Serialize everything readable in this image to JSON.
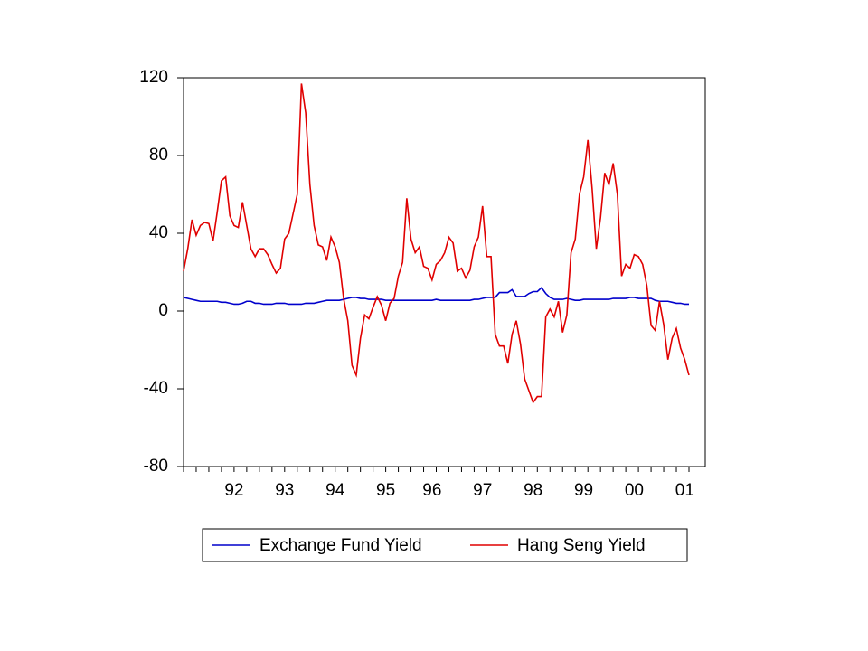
{
  "chart_data": {
    "type": "line",
    "categories": [
      null,
      null,
      null,
      null,
      null,
      null,
      null,
      null,
      null,
      null,
      null,
      null,
      "92",
      null,
      null,
      null,
      null,
      null,
      null,
      null,
      null,
      null,
      null,
      null,
      "93",
      null,
      null,
      null,
      null,
      null,
      null,
      null,
      null,
      null,
      null,
      null,
      "94",
      null,
      null,
      null,
      null,
      null,
      null,
      null,
      null,
      null,
      null,
      null,
      "95",
      null,
      null,
      null,
      null,
      null,
      null,
      null,
      null,
      null,
      null,
      "96",
      null,
      null,
      null,
      null,
      null,
      null,
      null,
      null,
      null,
      null,
      null,
      "97",
      null,
      null,
      null,
      null,
      null,
      null,
      null,
      null,
      null,
      null,
      null,
      "98",
      null,
      null,
      null,
      null,
      null,
      null,
      null,
      null,
      null,
      null,
      null,
      "99",
      null,
      null,
      null,
      null,
      null,
      null,
      null,
      null,
      null,
      null,
      null,
      "00",
      null,
      null,
      null,
      null,
      null,
      null,
      null,
      null,
      null,
      null,
      null,
      "01",
      null
    ],
    "series": [
      {
        "name": "Exchange Fund Yield",
        "color": "#0000cc",
        "values": [
          7,
          6.5,
          6,
          5.5,
          5,
          5,
          5,
          5,
          5,
          4.5,
          4.5,
          4,
          3.5,
          3.5,
          4,
          5,
          5,
          4,
          4,
          3.5,
          3.5,
          3.5,
          4,
          4,
          4,
          3.5,
          3.5,
          3.5,
          3.5,
          4,
          4,
          4,
          4.5,
          5,
          5.5,
          5.5,
          5.5,
          5.5,
          6,
          6.5,
          7,
          7,
          6.5,
          6.5,
          6,
          6,
          6,
          6,
          5.5,
          5.5,
          5.5,
          5.5,
          5.5,
          5.5,
          5.5,
          5.5,
          5.5,
          5.5,
          5.5,
          5.5,
          6,
          5.5,
          5.5,
          5.5,
          5.5,
          5.5,
          5.5,
          5.5,
          5.5,
          6,
          6,
          6.5,
          7,
          7,
          7,
          9.5,
          9.5,
          9.5,
          11,
          7.5,
          7.5,
          7.5,
          9,
          10,
          10,
          12,
          9,
          7,
          6,
          6,
          6,
          6.5,
          6,
          5.5,
          5.5,
          6,
          6,
          6,
          6,
          6,
          6,
          6,
          6.5,
          6.5,
          6.5,
          6.5,
          7,
          7,
          6.5,
          6.5,
          6.5,
          6.5,
          5.5,
          5,
          5,
          5,
          4.5,
          4,
          4,
          3.5,
          3.5
        ]
      },
      {
        "name": "Hang Seng Yield",
        "color": "#e00000",
        "values": [
          20.5,
          32,
          47,
          39,
          44,
          45.6,
          45,
          36,
          51,
          67,
          69,
          49,
          44,
          43,
          56,
          44,
          32,
          28,
          32,
          32,
          29,
          24,
          19.5,
          22,
          37,
          40,
          50,
          60,
          117,
          102,
          65,
          44,
          34,
          33,
          26,
          38,
          33,
          25,
          6.5,
          -5,
          -28,
          -33,
          -14,
          -2,
          -4,
          2,
          7.4,
          3,
          -5,
          4,
          6.5,
          18,
          25,
          58,
          37,
          30,
          33,
          23,
          22,
          16,
          24,
          26,
          30,
          38,
          35,
          20.5,
          22,
          17,
          21,
          33,
          38,
          54,
          28,
          28,
          -12,
          -18,
          -18,
          -27,
          -12,
          -5,
          -17,
          -35,
          -41,
          -47,
          -44,
          -44,
          -3,
          1,
          -3,
          5,
          -11,
          -2,
          30,
          37,
          60,
          69,
          88,
          63,
          32,
          48,
          71,
          65,
          76,
          60,
          18,
          24,
          22,
          29,
          28,
          24,
          13,
          -7.4,
          -10,
          5,
          -7,
          -25,
          -14,
          -9,
          -19,
          -25,
          -33
        ]
      }
    ],
    "ylim": [
      -80,
      120
    ],
    "yticks": [
      -80,
      -40,
      0,
      40,
      80,
      120
    ],
    "grid": false
  }
}
